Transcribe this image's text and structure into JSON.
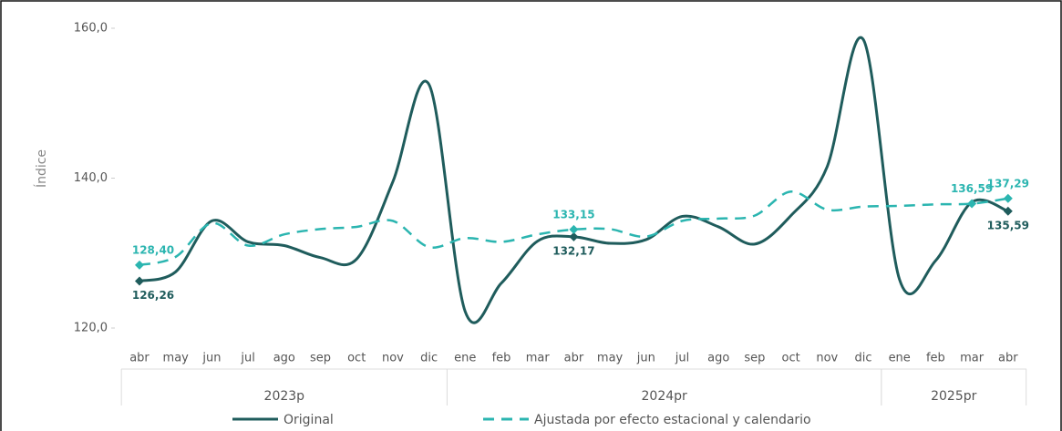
{
  "chart_data": {
    "type": "line",
    "y_label": "Índice",
    "categories": [
      "abr",
      "may",
      "jun",
      "jul",
      "ago",
      "sep",
      "oct",
      "nov",
      "dic",
      "ene",
      "feb",
      "mar",
      "abr",
      "may",
      "jun",
      "jul",
      "ago",
      "sep",
      "oct",
      "nov",
      "dic",
      "ene",
      "feb",
      "mar",
      "abr"
    ],
    "groups": [
      {
        "label": "2023p",
        "start": 0,
        "end": 8
      },
      {
        "label": "2024pr",
        "start": 9,
        "end": 20
      },
      {
        "label": "2025pr",
        "start": 21,
        "end": 24
      }
    ],
    "series": [
      {
        "name": "Original",
        "color": "#1f5c5c",
        "dash": false,
        "values": [
          126.26,
          127.5,
          134.3,
          131.5,
          131,
          129.4,
          129.2,
          139.5,
          152.5,
          122.2,
          126,
          131.6,
          132.17,
          131.3,
          131.8,
          134.9,
          133.5,
          131.2,
          135,
          141.5,
          158.5,
          126.5,
          129,
          136.8,
          135.59
        ],
        "value_labels": [
          "126,26",
          null,
          null,
          null,
          null,
          null,
          null,
          null,
          null,
          null,
          null,
          null,
          "132,17",
          null,
          null,
          null,
          null,
          null,
          null,
          null,
          null,
          null,
          null,
          null,
          "135,59"
        ]
      },
      {
        "name": "Ajustada por efecto estacional y calendario",
        "color": "#2bb5b0",
        "dash": true,
        "values": [
          128.4,
          129.5,
          134,
          131,
          132.5,
          133.2,
          133.5,
          134.3,
          130.8,
          132,
          131.5,
          132.5,
          133.15,
          133.2,
          132.2,
          134.3,
          134.6,
          135,
          138.2,
          135.8,
          136.2,
          136.3,
          136.5,
          136.59,
          137.29
        ],
        "value_labels": [
          "128,40",
          null,
          null,
          null,
          null,
          null,
          null,
          null,
          null,
          null,
          null,
          null,
          "133,15",
          null,
          null,
          null,
          null,
          null,
          null,
          null,
          null,
          null,
          null,
          "136,59",
          "137,29"
        ]
      }
    ],
    "ylim": [
      120,
      160
    ],
    "yticks": [
      {
        "value": 120,
        "label": "120,0"
      },
      {
        "value": 140,
        "label": "140,0"
      },
      {
        "value": 160,
        "label": "160,0"
      }
    ],
    "grid": false
  }
}
